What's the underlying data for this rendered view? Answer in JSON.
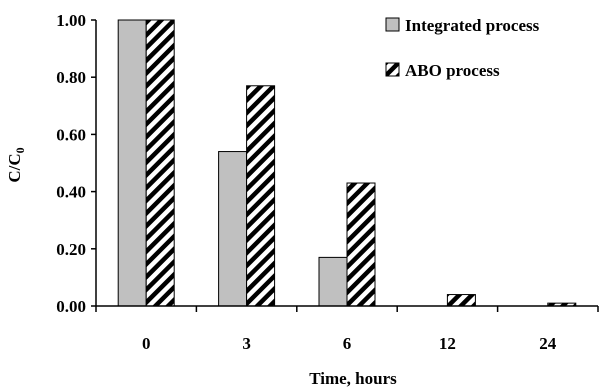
{
  "chart_data": {
    "type": "bar",
    "categories": [
      "0",
      "3",
      "6",
      "12",
      "24"
    ],
    "series": [
      {
        "name": "Integrated process",
        "values": [
          1.0,
          0.54,
          0.17,
          0.0,
          0.0
        ],
        "color": "#c0c0c0",
        "pattern": "solid"
      },
      {
        "name": "ABO process",
        "values": [
          1.0,
          0.77,
          0.43,
          0.04,
          0.01
        ],
        "color": "#000000",
        "pattern": "diagonal-hatch"
      }
    ],
    "xlabel": "Time, hours",
    "ylabel": "C/C",
    "ylabel_subscript": "0",
    "ylim": [
      0,
      1.0
    ],
    "yticks": [
      "0.00",
      "0.20",
      "0.40",
      "0.60",
      "0.80",
      "1.00"
    ],
    "grid": false,
    "legend_position": "top-right"
  }
}
